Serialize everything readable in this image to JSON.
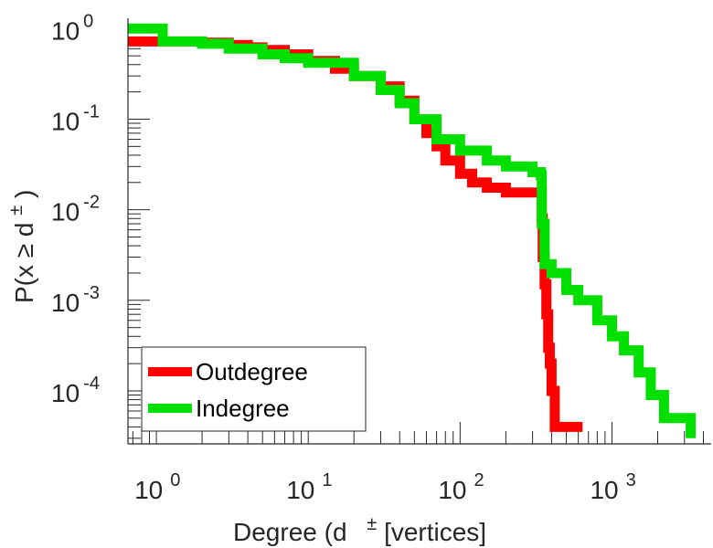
{
  "chart_data": {
    "type": "line",
    "scale": "log-log",
    "title": "",
    "xlabel": "Degree (d",
    "xlabel_sup": "±",
    "xlabel_suffix": " [vertices]",
    "ylabel": "P(x ≥ d",
    "ylabel_sup": "±",
    "ylabel_suffix": ")",
    "xlim": [
      0.65,
      4500
    ],
    "ylim": [
      2.6e-05,
      1.3
    ],
    "x_ticks": [
      {
        "base": "10",
        "exp": "0",
        "value": 1
      },
      {
        "base": "10",
        "exp": "1",
        "value": 10
      },
      {
        "base": "10",
        "exp": "2",
        "value": 100
      },
      {
        "base": "10",
        "exp": "3",
        "value": 1000
      }
    ],
    "y_ticks": [
      {
        "base": "10",
        "exp": "0",
        "value": 1
      },
      {
        "base": "10",
        "exp": "-1",
        "value": 0.1
      },
      {
        "base": "10",
        "exp": "-2",
        "value": 0.01
      },
      {
        "base": "10",
        "exp": "-3",
        "value": 0.001
      },
      {
        "base": "10",
        "exp": "-4",
        "value": 0.0001
      }
    ],
    "legend_position": "bottom-left",
    "series": [
      {
        "name": "Outdegree",
        "color": "#ff0000",
        "x": [
          0.65,
          1,
          2,
          3,
          4,
          5,
          7,
          10,
          15,
          20,
          30,
          40,
          50,
          60,
          70,
          80,
          100,
          120,
          150,
          200,
          250,
          300,
          340,
          345,
          350,
          360,
          370,
          380,
          390,
          400,
          420,
          640
        ],
        "y": [
          0.72,
          0.72,
          0.7,
          0.66,
          0.62,
          0.58,
          0.52,
          0.44,
          0.36,
          0.3,
          0.23,
          0.16,
          0.1,
          0.07,
          0.05,
          0.035,
          0.025,
          0.02,
          0.0175,
          0.0155,
          0.0155,
          0.0155,
          0.0155,
          0.008,
          0.003,
          0.0015,
          0.0007,
          0.0003,
          0.0002,
          0.0001,
          4e-05,
          4e-05
        ]
      },
      {
        "name": "Indegree",
        "color": "#00e000",
        "x": [
          0.65,
          1,
          1.1,
          2,
          3,
          5,
          7,
          10,
          20,
          30,
          40,
          50,
          70,
          100,
          150,
          200,
          300,
          340,
          345,
          360,
          400,
          500,
          600,
          800,
          1000,
          1200,
          1500,
          1800,
          2200,
          2800,
          3300
        ],
        "y": [
          1,
          1,
          0.72,
          0.68,
          0.6,
          0.52,
          0.47,
          0.42,
          0.3,
          0.21,
          0.15,
          0.1,
          0.06,
          0.045,
          0.035,
          0.03,
          0.026,
          0.024,
          0.007,
          0.0025,
          0.002,
          0.0013,
          0.001,
          0.0006,
          0.0004,
          0.00028,
          0.00016,
          9e-05,
          5e-05,
          5e-05,
          3e-05
        ]
      }
    ]
  }
}
